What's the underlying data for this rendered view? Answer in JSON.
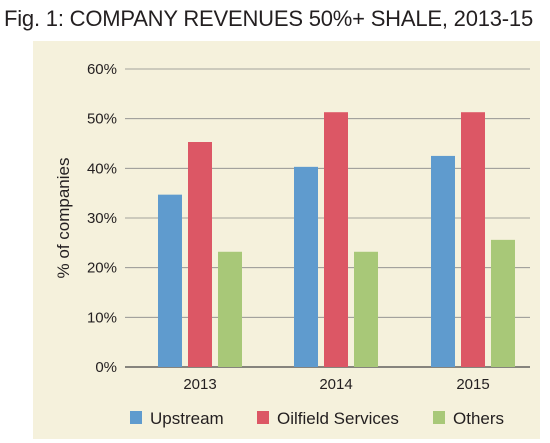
{
  "figure": {
    "title": "Fig. 1:  COMPANY REVENUES 50%+ SHALE, 2013-15"
  },
  "chart_data": {
    "type": "bar",
    "title": "Fig. 1:  COMPANY REVENUES 50%+ SHALE, 2013-15",
    "categories": [
      "2013",
      "2014",
      "2015"
    ],
    "series": [
      {
        "name": "Upstream",
        "values": [
          34.7,
          40.3,
          42.5
        ],
        "color": "#5f9bce"
      },
      {
        "name": "Oilfield Services",
        "values": [
          45.3,
          51.3,
          51.3
        ],
        "color": "#dc5765"
      },
      {
        "name": "Others",
        "values": [
          23.2,
          23.2,
          25.6
        ],
        "color": "#a8c878"
      }
    ],
    "ylabel": "% of companies",
    "ylim": [
      0,
      60
    ],
    "yticks": [
      0,
      10,
      20,
      30,
      40,
      50,
      60
    ],
    "ytick_labels": [
      "0%",
      "10%",
      "20%",
      "30%",
      "40%",
      "50%",
      "60%"
    ],
    "grid": true,
    "legend_position": "bottom",
    "background": "#f5f1dc",
    "grid_color": "#888888"
  }
}
